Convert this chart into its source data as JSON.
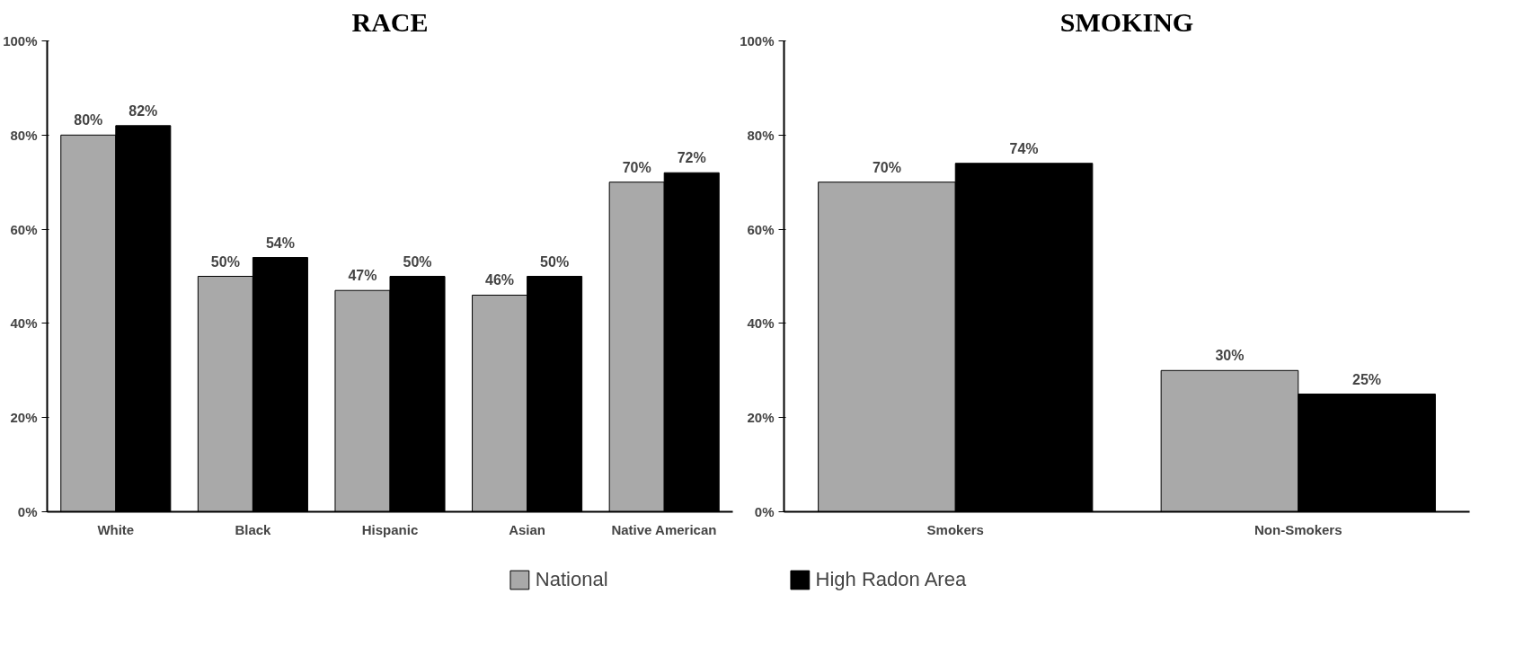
{
  "chart_data": [
    {
      "type": "bar",
      "title": "RACE",
      "categories": [
        "White",
        "Black",
        "Hispanic",
        "Asian",
        "Native American"
      ],
      "ylim": [
        0,
        100
      ],
      "yticks": [
        {
          "value": 0,
          "label": "0%"
        },
        {
          "value": 20,
          "label": "20%"
        },
        {
          "value": 40,
          "label": "40%"
        },
        {
          "value": 60,
          "label": "60%"
        },
        {
          "value": 80,
          "label": "80%"
        },
        {
          "value": 100,
          "label": "100%"
        }
      ],
      "grid": false,
      "legend": "bottom",
      "series": [
        {
          "name": "National",
          "color": "#a9a9a9",
          "values": [
            80,
            50,
            47,
            46,
            70
          ],
          "value_labels": [
            "80%",
            "50%",
            "47%",
            "46%",
            "70%"
          ]
        },
        {
          "name": "High Radon Area",
          "color": "#000000",
          "values": [
            82,
            54,
            50,
            50,
            72
          ],
          "value_labels": [
            "82%",
            "54%",
            "50%",
            "50%",
            "72%"
          ]
        }
      ]
    },
    {
      "type": "bar",
      "title": "SMOKING",
      "categories": [
        "Smokers",
        "Non-Smokers"
      ],
      "ylim": [
        0,
        100
      ],
      "yticks": [
        {
          "value": 0,
          "label": "0%"
        },
        {
          "value": 20,
          "label": "20%"
        },
        {
          "value": 40,
          "label": "40%"
        },
        {
          "value": 60,
          "label": "60%"
        },
        {
          "value": 80,
          "label": "80%"
        },
        {
          "value": 100,
          "label": "100%"
        }
      ],
      "grid": false,
      "series": [
        {
          "color": "#a9a9a9",
          "values": [
            70,
            30
          ],
          "value_labels": [
            "70%",
            "30%"
          ]
        },
        {
          "color": "#000000",
          "values": [
            74,
            25
          ],
          "value_labels": [
            "74%",
            "25%"
          ]
        }
      ]
    }
  ]
}
